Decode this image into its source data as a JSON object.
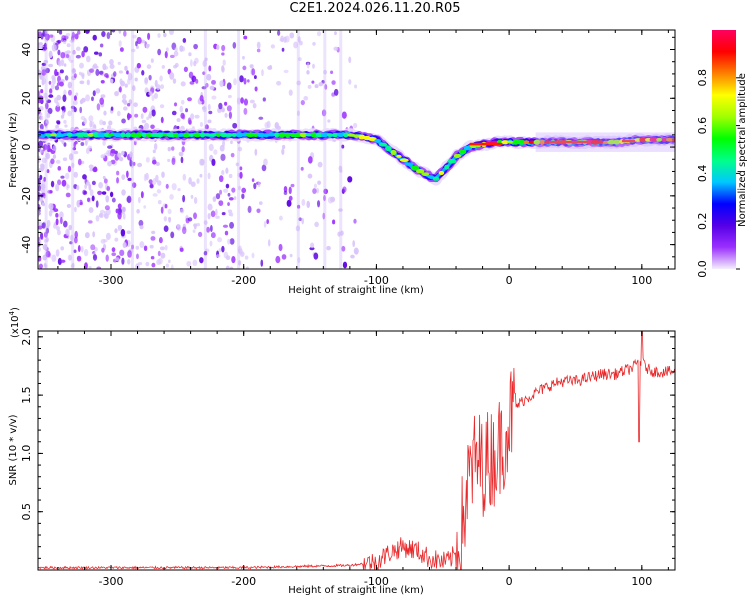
{
  "title": "C2E1.2024.026.11.20.R05",
  "chart_data": [
    {
      "type": "heatmap",
      "xlabel": "Height of straight line (km)",
      "ylabel": "Frequency (Hz)",
      "xlim": [
        -355,
        125
      ],
      "ylim": [
        -50,
        48
      ],
      "xticks": [
        -300,
        -200,
        -100,
        0,
        100
      ],
      "yticks": [
        -40,
        -20,
        0,
        20,
        40
      ],
      "colorbar": {
        "label": "Normalized spectral amplitude",
        "range": [
          0,
          1
        ],
        "ticks": [
          0.0,
          0.2,
          0.4,
          0.6,
          0.8
        ],
        "tick_labels": [
          "0.0",
          "0.2",
          "0.4",
          "0.6",
          "0.8"
        ],
        "colors": [
          "#f4eefe",
          "#9b30ff",
          "#5500e6",
          "#0000ff",
          "#00c8ff",
          "#00ff88",
          "#00ff00",
          "#a0ff00",
          "#ffff00",
          "#ff8000",
          "#ff0000",
          "#ff0060"
        ]
      },
      "ridge": {
        "x": [
          -355,
          -300,
          -250,
          -200,
          -150,
          -120,
          -100,
          -90,
          -80,
          -70,
          -60,
          -55,
          -50,
          -40,
          -30,
          -20,
          -10,
          0,
          20,
          50,
          80,
          100,
          125
        ],
        "y": [
          5,
          5,
          5,
          5,
          5,
          5,
          3,
          -1,
          -5,
          -9,
          -12,
          -13,
          -10,
          -4,
          0,
          1,
          2,
          2,
          2,
          2,
          2,
          3,
          3
        ]
      },
      "scatter_region": {
        "x_from": -355,
        "x_to": -115,
        "y_from": -50,
        "y_to": 48
      }
    },
    {
      "type": "line",
      "xlabel": "Height of straight line (km)",
      "ylabel": "SNR (10 * v/v)",
      "y_multiplier": "(x10",
      "y_multiplier_exp": "4",
      "xlim": [
        -355,
        125
      ],
      "ylim": [
        0,
        2.05
      ],
      "xticks": [
        -300,
        -200,
        -100,
        0,
        100
      ],
      "yticks": [
        0.5,
        1.0,
        1.5,
        2.0
      ],
      "ytick_labels": [
        "0.5",
        "1.0",
        "1.5",
        "2.0"
      ],
      "color": "#e8282a",
      "series_profile": {
        "x": [
          -355,
          -200,
          -120,
          -100,
          -90,
          -80,
          -70,
          -60,
          -50,
          -45,
          -40,
          -35,
          -30,
          -25,
          -20,
          -15,
          -10,
          -5,
          0,
          5,
          10,
          20,
          30,
          40,
          50,
          60,
          70,
          80,
          90,
          95,
          98,
          100,
          105,
          110,
          125
        ],
        "y": [
          0.02,
          0.02,
          0.04,
          0.07,
          0.15,
          0.2,
          0.17,
          0.1,
          0.07,
          0.08,
          0.15,
          0.4,
          0.8,
          0.95,
          0.9,
          0.95,
          1.0,
          1.1,
          1.3,
          1.4,
          1.45,
          1.52,
          1.58,
          1.62,
          1.62,
          1.65,
          1.68,
          1.68,
          1.72,
          1.75,
          1.8,
          1.78,
          1.72,
          1.7,
          1.7
        ]
      }
    }
  ]
}
